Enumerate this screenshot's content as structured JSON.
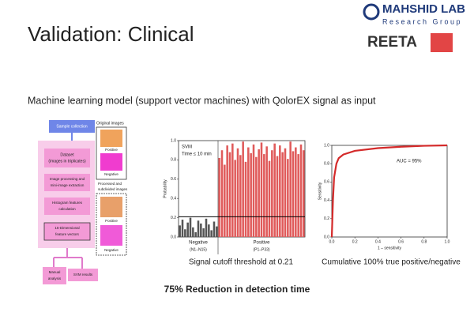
{
  "header": {
    "title": "Validation: Clinical",
    "subtitle": "Machine learning model (support vector machines) with QolorEX signal as input"
  },
  "logos": {
    "lab": "MAHSHID LAB",
    "group": "Research Group",
    "partner": "REETA"
  },
  "flowchart": {
    "nodes": [
      [
        "Sample collection"
      ],
      [
        "Dataset",
        "(images in triplicates)"
      ],
      [
        "Image processing and",
        "mini-image extraction"
      ],
      [
        "Histogram features",
        "calculation"
      ],
      [
        "16-Dimensional",
        "feature vectors"
      ],
      [
        "Manual",
        "analysis"
      ],
      [
        "SVM results"
      ]
    ],
    "side": {
      "original": "Original images",
      "processed": [
        "Processed and",
        "subdivided images"
      ],
      "positive": "Positive",
      "negative": "Negative"
    }
  },
  "bar_chart": {
    "type": "bar",
    "title": "SVM",
    "subtitle": "Time ≤ 10 min",
    "ylabel": "Probability",
    "ylim": [
      0,
      1
    ],
    "yticks": [
      {
        "value": 0,
        "label": "0.0"
      },
      {
        "value": 0.2,
        "label": "0.2"
      },
      {
        "value": 0.4,
        "label": "0.4"
      },
      {
        "value": 0.6,
        "label": "0.6"
      },
      {
        "value": 0.8,
        "label": "0.8"
      },
      {
        "value": 1,
        "label": "1.0"
      }
    ],
    "threshold": 0.21,
    "groups": [
      {
        "label": "Negative",
        "sublabel": "(N1–N15)",
        "color": "#555555",
        "values": [
          0.12,
          0.18,
          0.08,
          0.15,
          0.2,
          0.1,
          0.05,
          0.17,
          0.14,
          0.09,
          0.19,
          0.13,
          0.07,
          0.16,
          0.11
        ]
      },
      {
        "label": "Positive",
        "sublabel": "(P1–P33)",
        "color": "#e05a5a",
        "values": [
          0.82,
          0.9,
          0.75,
          0.95,
          0.88,
          0.97,
          0.8,
          0.92,
          0.85,
          0.99,
          0.78,
          0.93,
          0.87,
          0.96,
          0.83,
          0.91,
          0.98,
          0.86,
          0.94,
          0.79,
          0.9,
          0.97,
          0.84,
          0.95,
          0.88,
          0.92,
          0.81,
          0.99,
          0.89,
          0.93,
          0.86,
          0.96,
          0.9
        ]
      }
    ],
    "caption": "Signal cutoff threshold at 0.21"
  },
  "roc_chart": {
    "type": "line",
    "xlabel": "1 – sensitivity",
    "ylabel": "Sensitivity",
    "annotation": "AUC = 95%",
    "color": "#d42a2a",
    "x": [
      0,
      0.01,
      0.02,
      0.04,
      0.06,
      0.1,
      0.2,
      0.4,
      0.6,
      0.8,
      1
    ],
    "values": [
      0,
      0.4,
      0.65,
      0.8,
      0.86,
      0.9,
      0.94,
      0.97,
      0.985,
      0.995,
      1
    ],
    "xlim": [
      0,
      1
    ],
    "ylim": [
      0,
      1
    ],
    "xticks": [
      {
        "value": 0,
        "label": "0.0"
      },
      {
        "value": 0.2,
        "label": "0.2"
      },
      {
        "value": 0.4,
        "label": "0.4"
      },
      {
        "value": 0.6,
        "label": "0.6"
      },
      {
        "value": 0.8,
        "label": "0.8"
      },
      {
        "value": 1,
        "label": "1.0"
      }
    ],
    "yticks": [
      {
        "value": 0,
        "label": "0.0"
      },
      {
        "value": 0.2,
        "label": "0.2"
      },
      {
        "value": 0.4,
        "label": "0.4"
      },
      {
        "value": 0.6,
        "label": "0.6"
      },
      {
        "value": 0.8,
        "label": "0.8"
      },
      {
        "value": 1,
        "label": "1.0"
      }
    ],
    "caption": "Cumulative 100% true positive/negative"
  },
  "footer": {
    "highlight": "75% Reduction in detection time"
  }
}
